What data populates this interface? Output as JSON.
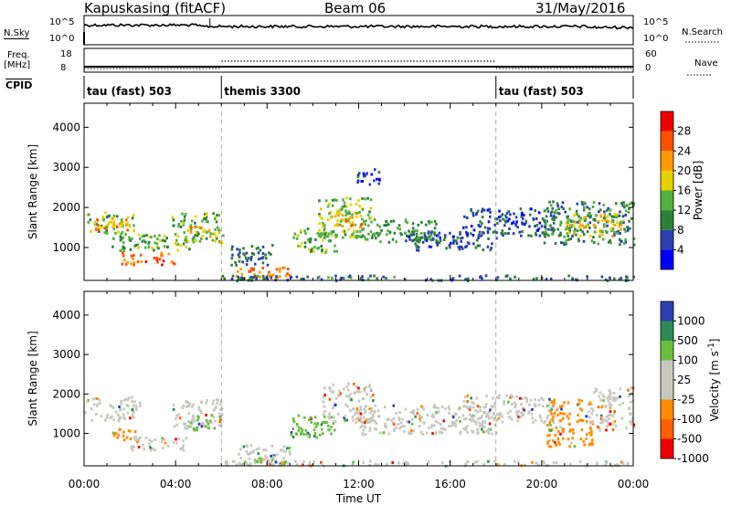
{
  "header": {
    "station": "Kapuskasing (fitACF)",
    "beam": "Beam 06",
    "date": "31/May/2016"
  },
  "strip": {
    "nsky_label": "N.Sky",
    "nsky_ticks": [
      "10^5",
      "10^0"
    ],
    "nsearch_label": "N.Search",
    "nsearch_ticks": [
      "10^5",
      "10^0"
    ],
    "freq_label": "Freq.",
    "freq_unit": "[MHz]",
    "freq_ticks": [
      "18",
      "8"
    ],
    "nave_label": "Nave",
    "nave_ticks": [
      "60",
      "0"
    ],
    "cpid_label": "CPID"
  },
  "cpid_segments": [
    {
      "label": "tau (fast) 503",
      "start_h": 0
    },
    {
      "label": "themis 3300",
      "start_h": 6
    },
    {
      "label": "tau (fast) 503",
      "start_h": 18
    }
  ],
  "chart_data": [
    {
      "type": "heatmap",
      "parameter": "Power",
      "xlabel": "",
      "ylabel": "Slant Range [km]",
      "xlim": [
        0,
        24
      ],
      "ylim": [
        180,
        4600
      ],
      "yticks": [
        1000,
        2000,
        3000,
        4000
      ],
      "colorbar": {
        "label": "Power [dB]",
        "ticks": [
          4,
          8,
          12,
          16,
          20,
          24,
          28
        ],
        "range": [
          0,
          32
        ],
        "colors": [
          "#0000ff",
          "#2a3fb0",
          "#2e7f3a",
          "#52b240",
          "#e6d200",
          "#ff9900",
          "#ff5000",
          "#ee0000"
        ]
      },
      "echo_bands": [
        {
          "t": [
            0,
            2.2
          ],
          "range": [
            1350,
            1900
          ],
          "value": 14
        },
        {
          "t": [
            0.3,
            2.0
          ],
          "range": [
            1450,
            1750
          ],
          "value": 22
        },
        {
          "t": [
            1.2,
            2.3
          ],
          "range": [
            900,
            1300
          ],
          "value": 12
        },
        {
          "t": [
            1.6,
            4.0
          ],
          "range": [
            600,
            900
          ],
          "value": 26
        },
        {
          "t": [
            2.2,
            4.6
          ],
          "range": [
            950,
            1350
          ],
          "value": 14
        },
        {
          "t": [
            3.8,
            5.9
          ],
          "range": [
            1150,
            1900
          ],
          "value": 13
        },
        {
          "t": [
            4.6,
            5.6
          ],
          "range": [
            1300,
            1550
          ],
          "value": 22
        },
        {
          "t": [
            5.6,
            6.2
          ],
          "range": [
            1100,
            1500
          ],
          "value": 18
        },
        {
          "t": [
            6.6,
            9.0
          ],
          "range": [
            250,
            550
          ],
          "value": 24
        },
        {
          "t": [
            6.4,
            8.2
          ],
          "range": [
            550,
            1100
          ],
          "value": 8
        },
        {
          "t": [
            9.0,
            11.0
          ],
          "range": [
            900,
            1500
          ],
          "value": 14
        },
        {
          "t": [
            10.2,
            12.6
          ],
          "range": [
            1250,
            2300
          ],
          "value": 15
        },
        {
          "t": [
            10.9,
            12.2
          ],
          "range": [
            1500,
            1900
          ],
          "value": 22
        },
        {
          "t": [
            12.0,
            15.5
          ],
          "range": [
            1150,
            1750
          ],
          "value": 12
        },
        {
          "t": [
            11.8,
            12.9
          ],
          "range": [
            2600,
            3000
          ],
          "value": 5
        },
        {
          "t": [
            14.0,
            18.0
          ],
          "range": [
            950,
            1450
          ],
          "value": 7
        },
        {
          "t": [
            16.5,
            20.5
          ],
          "range": [
            1300,
            2000
          ],
          "value": 6
        },
        {
          "t": [
            20.0,
            24.0
          ],
          "range": [
            1100,
            2200
          ],
          "value": 10
        },
        {
          "t": [
            21.0,
            23.5
          ],
          "range": [
            1300,
            1900
          ],
          "value": 18
        },
        {
          "t": [
            6.0,
            24.0
          ],
          "range": [
            200,
            330
          ],
          "value": 9
        }
      ]
    },
    {
      "type": "heatmap",
      "parameter": "Velocity",
      "xlabel": "Time UT",
      "ylabel": "Slant Range [km]",
      "xlim": [
        0,
        24
      ],
      "ylim": [
        180,
        4600
      ],
      "xticks": [
        "00:00",
        "04:00",
        "08:00",
        "12:00",
        "16:00",
        "20:00",
        "00:00"
      ],
      "yticks": [
        1000,
        2000,
        3000,
        4000
      ],
      "colorbar": {
        "label": "Velocity [m s^-1]",
        "ticks": [
          "1000",
          "500",
          "100",
          "25",
          "-25",
          "-100",
          "-500",
          "-1000"
        ],
        "colors": [
          "#2a3fb0",
          "#2e8b57",
          "#6abf40",
          "#c8c8c0",
          "#c8c8c0",
          "#ff8c00",
          "#ff6000",
          "#ee0000"
        ]
      },
      "echo_bands": [
        {
          "t": [
            0,
            2.4
          ],
          "range": [
            1350,
            1950
          ],
          "value": "25"
        },
        {
          "t": [
            1.2,
            2.4
          ],
          "range": [
            800,
            1150
          ],
          "value": "-100"
        },
        {
          "t": [
            2.0,
            4.6
          ],
          "range": [
            600,
            950
          ],
          "value": "25"
        },
        {
          "t": [
            3.8,
            6.0
          ],
          "range": [
            1150,
            1900
          ],
          "value": "25"
        },
        {
          "t": [
            4.6,
            5.9
          ],
          "range": [
            1100,
            1500
          ],
          "value": "100"
        },
        {
          "t": [
            6.6,
            9.0
          ],
          "range": [
            250,
            750
          ],
          "value": "25"
        },
        {
          "t": [
            7.4,
            8.8
          ],
          "range": [
            260,
            420
          ],
          "value": "100"
        },
        {
          "t": [
            9.0,
            11.0
          ],
          "range": [
            900,
            1500
          ],
          "value": "100"
        },
        {
          "t": [
            10.4,
            12.6
          ],
          "range": [
            1300,
            2300
          ],
          "value": "25"
        },
        {
          "t": [
            12.0,
            18.0
          ],
          "range": [
            1000,
            1750
          ],
          "value": "25"
        },
        {
          "t": [
            16.5,
            20.5
          ],
          "range": [
            1300,
            2000
          ],
          "value": "25"
        },
        {
          "t": [
            20.2,
            22.2
          ],
          "range": [
            700,
            1900
          ],
          "value": "-100"
        },
        {
          "t": [
            22.0,
            24.0
          ],
          "range": [
            1100,
            2200
          ],
          "value": "25"
        },
        {
          "t": [
            6.0,
            24.0
          ],
          "range": [
            200,
            330
          ],
          "value": "25"
        }
      ]
    }
  ]
}
